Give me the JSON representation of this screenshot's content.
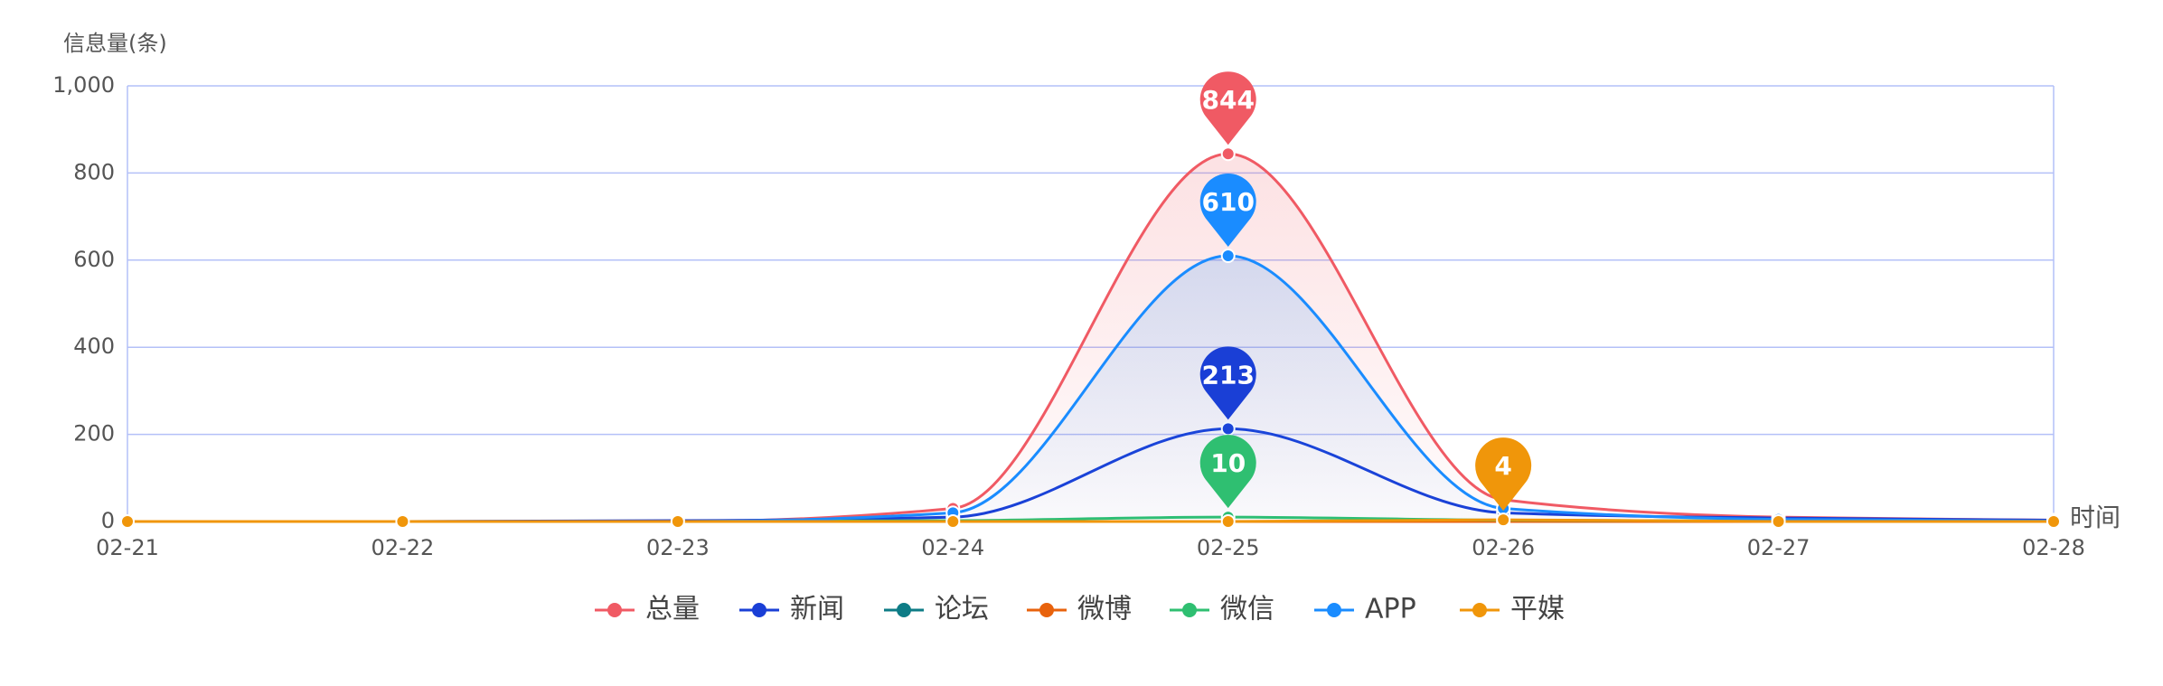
{
  "chart_data": {
    "type": "line",
    "y_axis_label": "信息量(条)",
    "x_axis_label": "时间",
    "categories": [
      "02-21",
      "02-22",
      "02-23",
      "02-24",
      "02-25",
      "02-26",
      "02-27",
      "02-28"
    ],
    "series": [
      {
        "name": "总量",
        "color": "#f05a64",
        "area": true,
        "pin": 4,
        "values": [
          0,
          0,
          0,
          30,
          844,
          50,
          10,
          3
        ]
      },
      {
        "name": "新闻",
        "color": "#1a3fd6",
        "area": false,
        "pin": 4,
        "values": [
          0,
          0,
          2,
          10,
          213,
          20,
          8,
          3
        ]
      },
      {
        "name": "论坛",
        "color": "#0e7c86",
        "area": false,
        "values": [
          0,
          0,
          0,
          0,
          0,
          0,
          0,
          0
        ]
      },
      {
        "name": "微博",
        "color": "#e8620c",
        "area": false,
        "values": [
          0,
          0,
          0,
          0,
          0,
          0,
          0,
          0
        ]
      },
      {
        "name": "微信",
        "color": "#2fbf71",
        "area": false,
        "pin": 4,
        "values": [
          0,
          0,
          0,
          2,
          10,
          3,
          1,
          0
        ]
      },
      {
        "name": "APP",
        "color": "#1a8cff",
        "area": true,
        "pin": 4,
        "values": [
          0,
          0,
          0,
          20,
          610,
          30,
          5,
          1
        ]
      },
      {
        "name": "平媒",
        "color": "#f0960a",
        "area": false,
        "pin": 5,
        "values": [
          0,
          0,
          0,
          0,
          0,
          4,
          0,
          0
        ]
      }
    ],
    "ylim": [
      0,
      1000
    ],
    "yticks": [
      0,
      200,
      400,
      600,
      800,
      {
        "value": 1000,
        "label": "1,000"
      }
    ],
    "grid": true,
    "legend": "bottom"
  }
}
